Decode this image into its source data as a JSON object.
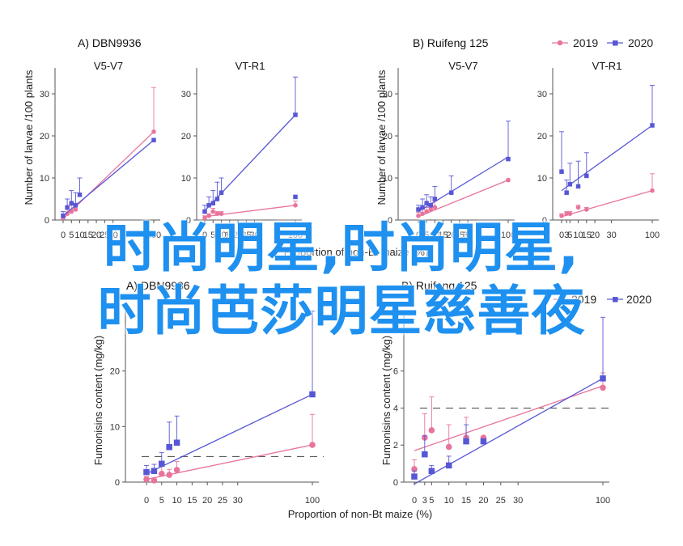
{
  "colors": {
    "2019": "#e8749c",
    "2020": "#5757d6",
    "axis": "#555555",
    "err2019": "#e8749c",
    "err2020": "#5757d6"
  },
  "overlay": {
    "line1": "时尚明星,时尚明星,",
    "line2": "时尚芭莎明星慈善夜"
  },
  "legend": {
    "items": [
      "2019",
      "2020"
    ]
  },
  "labels": {
    "top_ylabel": "Number of larvae /100 plants",
    "top_xlabel": "Proportion of non-Bt maize (%)",
    "bottom_ylabel": "Fumonisins content (mg/kg)",
    "bottom_xlabel": "Proportion of non-Bt maize (%)"
  },
  "chart_data": [
    {
      "type": "scatter",
      "panel": "A",
      "title": "DBN9936",
      "subtitle": "V5-V7",
      "ylabel": "Number of larvae /100 plants",
      "ylim": [
        0,
        35
      ],
      "yticks": [
        0,
        10,
        20,
        30
      ],
      "xticks": [
        0,
        5,
        10,
        15,
        20,
        25,
        30,
        100
      ],
      "series": [
        {
          "name": "2019",
          "x": [
            0,
            2.5,
            5,
            7.5,
            100
          ],
          "y": [
            0.5,
            1.5,
            2,
            2.5,
            21
          ],
          "err": [
            0.8,
            1,
            1.5,
            1.5,
            10.5
          ],
          "fit": [
            0.3,
            21
          ]
        },
        {
          "name": "2020",
          "x": [
            0,
            2.5,
            5,
            7.5,
            10,
            100
          ],
          "y": [
            1,
            3,
            4,
            3.5,
            6,
            19
          ],
          "err": [
            1,
            2,
            3,
            3,
            4,
            0
          ],
          "fit": [
            1,
            19
          ]
        }
      ]
    },
    {
      "type": "scatter",
      "panel": "A",
      "title": "",
      "subtitle": "VT-R1",
      "ylim": [
        0,
        35
      ],
      "yticks": [
        0,
        10,
        20,
        30
      ],
      "xticks": [
        0,
        5,
        10,
        15,
        20,
        25,
        30,
        100
      ],
      "series": [
        {
          "name": "2019",
          "x": [
            0,
            2.5,
            5,
            7.5,
            10,
            100
          ],
          "y": [
            0.5,
            1,
            2,
            1.5,
            1.5,
            3.5
          ],
          "err": [
            0.5,
            0.5,
            0.8,
            0.5,
            0.5,
            1
          ],
          "fit": [
            0.8,
            3.5
          ]
        },
        {
          "name": "2020",
          "x": [
            0,
            2.5,
            5,
            7.5,
            10,
            100
          ],
          "y": [
            2,
            3.5,
            4,
            5,
            6.5,
            5.5
          ],
          "err": [
            1.5,
            2,
            3,
            4,
            3.5,
            0
          ],
          "fit": [
            2.2,
            25
          ]
        },
        {
          "name": "2020",
          "x": [
            100
          ],
          "y": [
            25
          ],
          "err": [
            9
          ],
          "fit": null
        }
      ]
    },
    {
      "type": "scatter",
      "panel": "B",
      "title": "Ruifeng 125",
      "subtitle": "V5-V7",
      "ylabel": "Number of larvae /100 plants",
      "ylim": [
        0,
        35
      ],
      "yticks": [
        0,
        10,
        20,
        30
      ],
      "xticks": [
        0,
        5,
        10,
        15,
        20,
        25,
        30,
        100
      ],
      "series": [
        {
          "name": "2019",
          "x": [
            0,
            2.5,
            5,
            7.5,
            10,
            100
          ],
          "y": [
            1,
            1.5,
            2,
            2.5,
            3,
            9.5
          ],
          "err": [
            0.8,
            1,
            1,
            1,
            1.5,
            0
          ],
          "fit": [
            0.8,
            9.5
          ]
        },
        {
          "name": "2020",
          "x": [
            0,
            2.5,
            5,
            7.5,
            10,
            20,
            100
          ],
          "y": [
            2.5,
            3,
            4,
            3.5,
            5,
            6.5,
            14.5
          ],
          "err": [
            1,
            2,
            2,
            2,
            3,
            4,
            9
          ],
          "fit": [
            2,
            15
          ]
        }
      ]
    },
    {
      "type": "scatter",
      "panel": "B",
      "title": "",
      "subtitle": "VT-R1",
      "ylim": [
        0,
        35
      ],
      "yticks": [
        0,
        10,
        20,
        30
      ],
      "xticks": [
        0,
        3,
        5,
        10,
        15,
        20,
        30,
        100
      ],
      "series": [
        {
          "name": "2019",
          "x": [
            0,
            3,
            5,
            10,
            15,
            100
          ],
          "y": [
            1,
            1.5,
            1.5,
            3,
            2.5,
            7
          ],
          "err": [
            0.5,
            0.5,
            0.5,
            0.5,
            0.5,
            4
          ],
          "fit": [
            0.8,
            7
          ]
        },
        {
          "name": "2020",
          "x": [
            0,
            3,
            5,
            10,
            15,
            100
          ],
          "y": [
            11.5,
            6.5,
            8.5,
            8,
            10.5,
            22.5
          ],
          "err": [
            9.5,
            3,
            5,
            6,
            5.5,
            9.5
          ],
          "fit": [
            7,
            22.5
          ]
        }
      ]
    },
    {
      "type": "scatter",
      "panel": "A",
      "title": "DBN9936",
      "subtitle": "",
      "ylabel": "Fumonisins content (mg/kg)",
      "xlabel": "Proportion of non-Bt maize (%)",
      "ylim": [
        0,
        30
      ],
      "yticks": [
        0,
        10,
        20
      ],
      "threshold": 4.6,
      "xticks": [
        0,
        5,
        10,
        15,
        20,
        25,
        30,
        100
      ],
      "series": [
        {
          "name": "2019",
          "x": [
            0,
            2.5,
            5,
            7.5,
            10,
            100
          ],
          "y": [
            0.5,
            0.3,
            1.5,
            1.3,
            2.2,
            6.7
          ],
          "err": [
            0.5,
            0.3,
            1.5,
            1,
            1.5,
            5.5
          ],
          "fit": [
            0.5,
            6.7
          ]
        },
        {
          "name": "2020",
          "x": [
            0,
            2.5,
            5,
            7.5,
            10,
            100
          ],
          "y": [
            1.8,
            2,
            3.3,
            6.3,
            7.1,
            15.8
          ],
          "err": [
            1.2,
            1.2,
            2,
            4.5,
            4.8,
            15
          ],
          "fit": [
            1.5,
            15.8
          ]
        }
      ]
    },
    {
      "type": "scatter",
      "panel": "B",
      "title": "Ruifeng 125",
      "subtitle": "",
      "ylabel": "Fumonisins content (mg/kg)",
      "xlabel": "Proportion of non-Bt maize (%)",
      "ylim": [
        0,
        9
      ],
      "yticks": [
        0,
        2,
        4,
        6
      ],
      "threshold": 4,
      "xticks": [
        0,
        3,
        5,
        10,
        15,
        20,
        25,
        30,
        100
      ],
      "series": [
        {
          "name": "2019",
          "x": [
            0,
            3,
            5,
            10,
            15,
            20,
            100
          ],
          "y": [
            0.7,
            2.4,
            2.8,
            1.9,
            2.4,
            2.4,
            5.1
          ],
          "err": [
            0.5,
            1.3,
            1.8,
            1.2,
            1.1,
            0,
            0.8
          ],
          "fit": [
            1.7,
            5.2
          ]
        },
        {
          "name": "2020",
          "x": [
            0,
            3,
            5,
            10,
            15,
            20,
            100
          ],
          "y": [
            0.3,
            1.5,
            0.6,
            0.9,
            2.2,
            2.2,
            5.6
          ],
          "err": [
            0.3,
            1,
            0.3,
            0.5,
            0.9,
            0,
            3.3
          ],
          "fit": [
            -0.1,
            5.6
          ]
        }
      ]
    }
  ]
}
